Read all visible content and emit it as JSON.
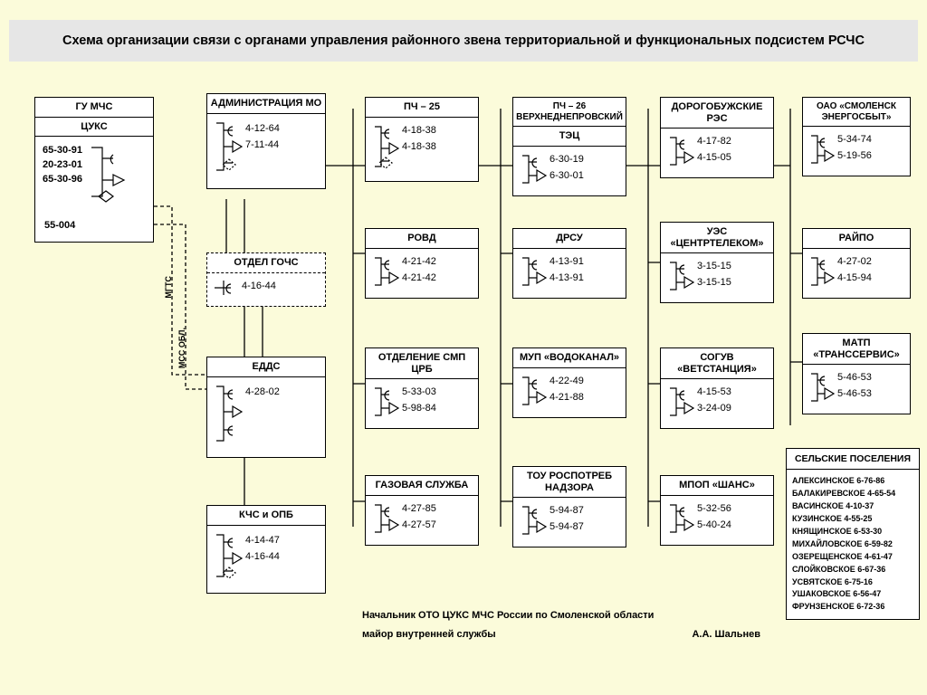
{
  "title": "Схема организации связи с органами управления районного звена территориальной и функциональных подсистем РСЧС",
  "colors": {
    "bg": "#fbfbda",
    "titlebar": "#e6e6e6",
    "border": "#000000",
    "box": "#ffffff"
  },
  "vlabels": {
    "mgts": "МГТС",
    "mss": "МСС ОБЛ."
  },
  "signature": {
    "line1": "Начальник ОТО ЦУКС МЧС России по Смоленской области",
    "line2a": "майор внутренней службы",
    "line2b": "А.А. Шальнев"
  },
  "gumchs": {
    "title": "ГУ МЧС",
    "sub": "ЦУКС",
    "left": [
      "65-30-91",
      "20-23-01",
      "65-30-96"
    ],
    "alone": "55-004"
  },
  "admin": {
    "title": "АДМИНИСТРАЦИЯ МО",
    "phones": [
      "4-12-64",
      "7-11-44"
    ]
  },
  "gochs": {
    "title": "ОТДЕЛ ГОЧС",
    "phones": [
      "4-16-44"
    ]
  },
  "edds": {
    "title": "ЕДДС",
    "phones": [
      "4-28-02"
    ]
  },
  "kchs": {
    "title": "КЧС и ОПБ",
    "phones": [
      "4-14-47",
      "4-16-44"
    ]
  },
  "pch25": {
    "title": "ПЧ – 25",
    "phones": [
      "4-18-38",
      "4-18-38"
    ]
  },
  "rovd": {
    "title": "РОВД",
    "phones": [
      "4-21-42",
      "4-21-42"
    ]
  },
  "smp": {
    "title": "ОТДЕЛЕНИЕ СМП ЦРБ",
    "phones": [
      "5-33-03",
      "5-98-84"
    ]
  },
  "gas": {
    "title": "ГАЗОВАЯ СЛУЖБА",
    "phones": [
      "4-27-85",
      "4-27-57"
    ]
  },
  "pch26": {
    "title": "ПЧ – 26 ВЕРХНЕДНЕПРОВСКИЙ",
    "sub": "ТЭЦ",
    "phones": [
      "6-30-19",
      "6-30-01"
    ]
  },
  "drsu": {
    "title": "ДРСУ",
    "phones": [
      "4-13-91",
      "4-13-91"
    ]
  },
  "vodokanal": {
    "title": "МУП «ВОДОКАНАЛ»",
    "phones": [
      "4-22-49",
      "4-21-88"
    ]
  },
  "rospotreb": {
    "title": "ТОУ РОСПОТРЕБ НАДЗОРА",
    "phones": [
      "5-94-87",
      "5-94-87"
    ]
  },
  "res": {
    "title": "ДОРОГОБУЖСКИЕ РЭС",
    "phones": [
      "4-17-82",
      "4-15-05"
    ]
  },
  "ues": {
    "title": "УЭС «ЦЕНТРТЕЛЕКОМ»",
    "phones": [
      "3-15-15",
      "3-15-15"
    ]
  },
  "soguv": {
    "title": "СОГУВ «ВЕТСТАНЦИЯ»",
    "phones": [
      "4-15-53",
      "3-24-09"
    ]
  },
  "mpop": {
    "title": "МПОП «ШАНС»",
    "phones": [
      "5-32-56",
      "5-40-24"
    ]
  },
  "energo": {
    "title": "ОАО «СМОЛЕНСК ЭНЕРГОСБЫТ»",
    "phones": [
      "5-34-74",
      "5-19-56"
    ]
  },
  "raipo": {
    "title": "РАЙПО",
    "phones": [
      "4-27-02",
      "4-15-94"
    ]
  },
  "matp": {
    "title": "МАТП «ТРАНССЕРВИС»",
    "phones": [
      "5-46-53",
      "5-46-53"
    ]
  },
  "settlements": {
    "title": "СЕЛЬСКИЕ ПОСЕЛЕНИЯ",
    "items": [
      "АЛЕКСИНСКОЕ 6-76-86",
      "БАЛАКИРЕВСКОЕ 4-65-54",
      "ВАСИНСКОЕ 4-10-37",
      "КУЗИНСКОЕ 4-55-25",
      "КНЯЩИНСКОЕ 6-53-30",
      "МИХАЙЛОВСКОЕ 6-59-82",
      "ОЗЕРЕЩЕНСКОЕ 4-61-47",
      "СЛОЙКОВСКОЕ 6-67-36",
      "УСВЯТСКОЕ 6-75-16",
      "УШАКОВСКОЕ 6-56-47",
      "ФРУНЗЕНСКОЕ 6-72-36"
    ]
  }
}
